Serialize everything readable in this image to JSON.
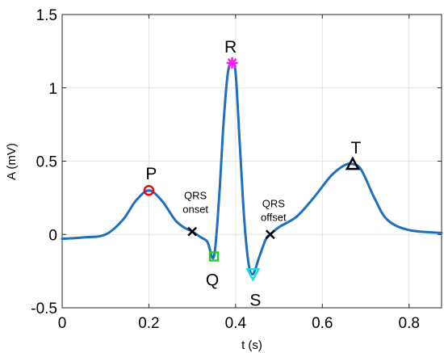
{
  "chart_data": {
    "type": "line",
    "xlabel": "t (s)",
    "ylabel": "A (mV)",
    "xlim": [
      0,
      0.875
    ],
    "ylim": [
      -0.5,
      1.5
    ],
    "xticks": [
      0,
      0.2,
      0.4,
      0.6,
      0.8
    ],
    "xtick_labels": [
      "0",
      "0.2",
      "0.4",
      "0.6",
      "0.8"
    ],
    "yticks": [
      -0.5,
      0,
      0.5,
      1,
      1.5
    ],
    "ytick_labels": [
      "-0.5",
      "0",
      "0.5",
      "1",
      "1.5"
    ],
    "grid": true,
    "series": [
      {
        "color": "#1f6fbf",
        "x": [
          0,
          0.05,
          0.1,
          0.14,
          0.17,
          0.2,
          0.23,
          0.26,
          0.28,
          0.3,
          0.32,
          0.335,
          0.35,
          0.362,
          0.372,
          0.382,
          0.392,
          0.4,
          0.41,
          0.42,
          0.43,
          0.44,
          0.455,
          0.47,
          0.48,
          0.5,
          0.54,
          0.58,
          0.62,
          0.65,
          0.67,
          0.69,
          0.72,
          0.75,
          0.8,
          0.875
        ],
        "y": [
          -0.03,
          -0.02,
          0.0,
          0.1,
          0.23,
          0.3,
          0.23,
          0.1,
          0.05,
          0.02,
          -0.02,
          -0.05,
          -0.15,
          0.25,
          0.75,
          1.1,
          1.17,
          1.1,
          0.6,
          0.1,
          -0.2,
          -0.27,
          -0.15,
          -0.03,
          0.0,
          0.05,
          0.12,
          0.25,
          0.4,
          0.47,
          0.48,
          0.44,
          0.25,
          0.1,
          0.03,
          0.01
        ]
      }
    ],
    "markers": [
      {
        "id": "p",
        "label": "P",
        "x": 0.2,
        "y": 0.3,
        "shape": "circle",
        "color": "#e01010"
      },
      {
        "id": "qrs-onset",
        "label_lines": [
          "QRS",
          "onset"
        ],
        "x": 0.3,
        "y": 0.02,
        "shape": "x",
        "color": "#000000"
      },
      {
        "id": "q",
        "label": "Q",
        "x": 0.35,
        "y": -0.15,
        "shape": "square",
        "color": "#22cc22"
      },
      {
        "id": "r",
        "label": "R",
        "x": 0.392,
        "y": 1.17,
        "shape": "asterisk",
        "color": "#ee22ee"
      },
      {
        "id": "s",
        "label": "S",
        "x": 0.44,
        "y": -0.27,
        "shape": "triangle-down",
        "color": "#22dddd"
      },
      {
        "id": "qrs-offset",
        "label_lines": [
          "QRS",
          "offset"
        ],
        "x": 0.48,
        "y": 0.0,
        "shape": "x",
        "color": "#000000"
      },
      {
        "id": "t",
        "label": "T",
        "x": 0.67,
        "y": 0.48,
        "shape": "triangle-up",
        "color": "#000000"
      }
    ]
  }
}
